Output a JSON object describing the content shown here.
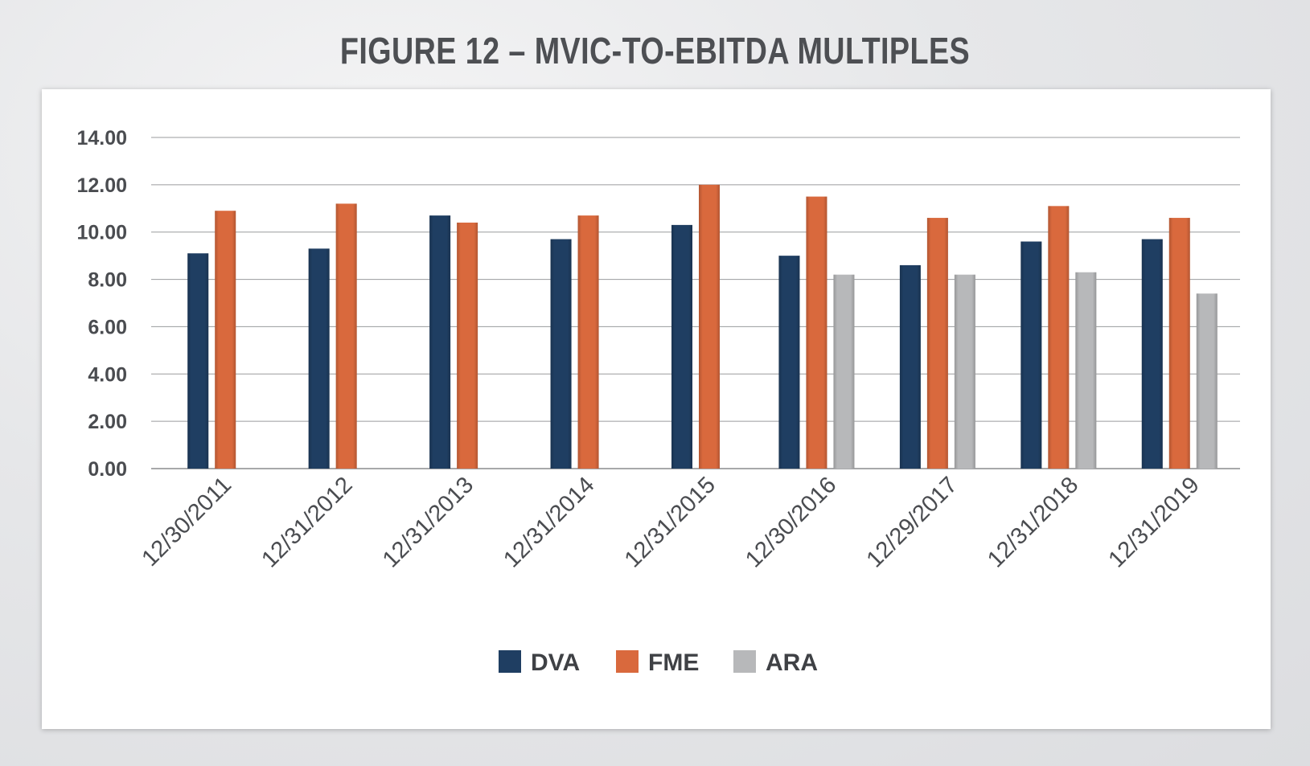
{
  "title": "FIGURE 12 – MVIC-TO-EBITDA MULTIPLES",
  "chart_data": {
    "type": "bar",
    "categories": [
      "12/30/2011",
      "12/31/2012",
      "12/31/2013",
      "12/31/2014",
      "12/31/2015",
      "12/30/2016",
      "12/29/2017",
      "12/31/2018",
      "12/31/2019"
    ],
    "series": [
      {
        "name": "DVA",
        "color": "#1f3e62",
        "values": [
          9.1,
          9.3,
          10.7,
          9.7,
          10.3,
          9.0,
          8.6,
          9.6,
          9.7
        ]
      },
      {
        "name": "FME",
        "color": "#d9693d",
        "values": [
          10.9,
          11.2,
          10.4,
          10.7,
          12.0,
          11.5,
          10.6,
          11.1,
          10.6
        ]
      },
      {
        "name": "ARA",
        "color": "#b7b8ba",
        "values": [
          null,
          null,
          null,
          null,
          null,
          8.2,
          8.2,
          8.3,
          7.4
        ]
      }
    ],
    "ylim": [
      0,
      14
    ],
    "yticks": [
      "0.00",
      "2.00",
      "4.00",
      "6.00",
      "8.00",
      "10.00",
      "12.00",
      "14.00"
    ],
    "grid": true,
    "legend": "bottom-center"
  }
}
